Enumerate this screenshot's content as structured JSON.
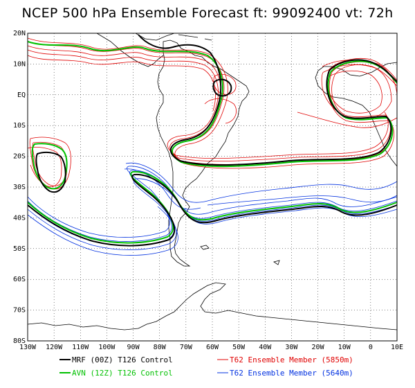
{
  "title": "NCEP 500 hPa Ensemble Forecast  ft: 99092400 vt: 72h",
  "map": {
    "lon_range": [
      -130,
      10
    ],
    "lat_range": [
      -80,
      20
    ],
    "lat_labels": [
      "20N",
      "10N",
      "EQ",
      "10S",
      "20S",
      "30S",
      "40S",
      "50S",
      "60S",
      "70S",
      "80S"
    ],
    "lon_labels": [
      "130W",
      "120W",
      "110W",
      "100W",
      "90W",
      "80W",
      "70W",
      "60W",
      "50W",
      "40W",
      "30W",
      "20W",
      "10W",
      "0",
      "10E"
    ],
    "grid": true,
    "grid_style": "dotted"
  },
  "legend": [
    {
      "label": "MRF (00Z) T126 Control",
      "color": "#000000"
    },
    {
      "label": "AVN (12Z) T126 Control",
      "color": "#00c000"
    },
    {
      "label": "T62 Ensemble Member (5850m)",
      "color": "#e00000"
    },
    {
      "label": "T62 Ensemble Member (5640m)",
      "color": "#0030e0"
    }
  ],
  "colors": {
    "mrf": "#000000",
    "avn": "#00c000",
    "red_members": "#e00000",
    "blue_members": "#0030e0",
    "coast": "#000000"
  }
}
